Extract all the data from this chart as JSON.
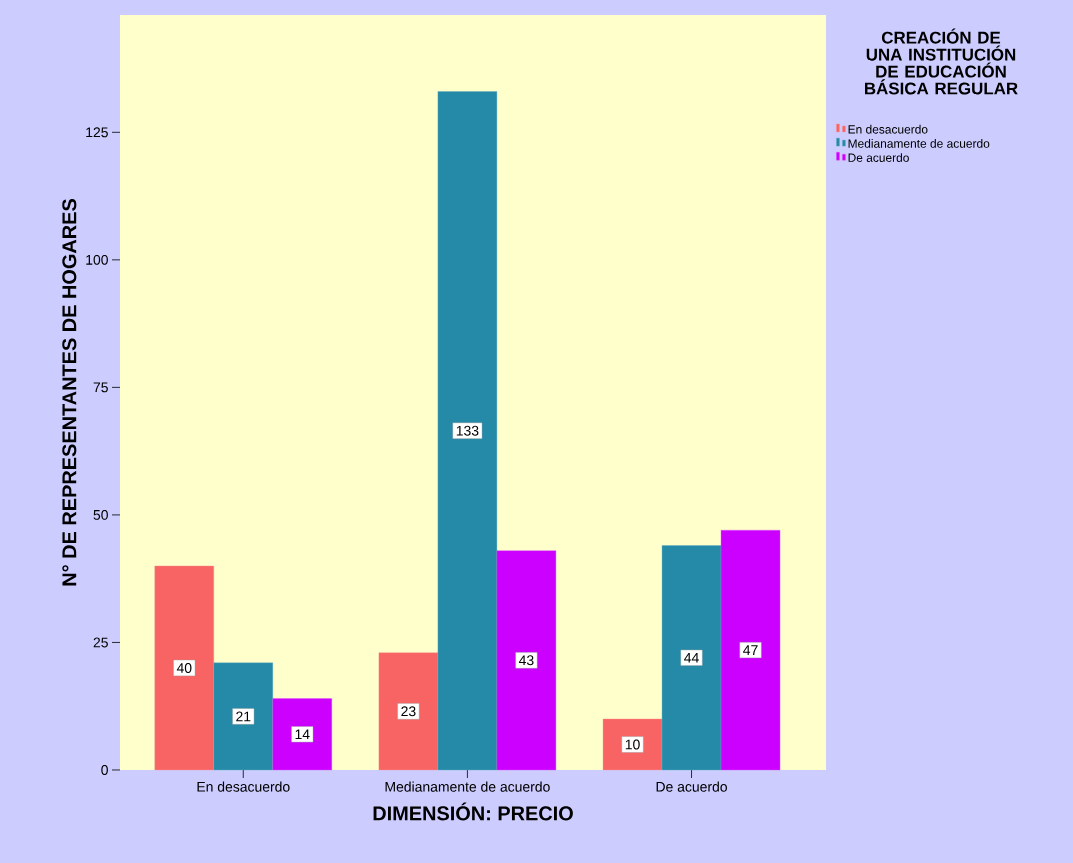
{
  "chart_data": {
    "type": "bar",
    "xlabel": "DIMENSIÓN: PRECIO",
    "ylabel": "N° DE REPRESENTANTES DE HOGARES",
    "legend_title": "CREACIÓN DE UNA INSTITUCIÓN DE EDUCACIÓN BÁSICA REGULAR",
    "categories": [
      "En desacuerdo",
      "Medianamente de acuerdo",
      "De acuerdo"
    ],
    "series": [
      {
        "name": "En desacuerdo",
        "color": "#f86464",
        "values": [
          40,
          23,
          10
        ]
      },
      {
        "name": "Medianamente de acuerdo",
        "color": "#248aa8",
        "values": [
          21,
          133,
          44
        ]
      },
      {
        "name": "De acuerdo",
        "color": "#cc00ff",
        "values": [
          14,
          43,
          47
        ]
      }
    ],
    "ylim": [
      0,
      148
    ],
    "yticks": [
      0,
      25,
      50,
      75,
      100,
      125
    ],
    "grid": false,
    "legend": "top right",
    "data_labels": true
  }
}
